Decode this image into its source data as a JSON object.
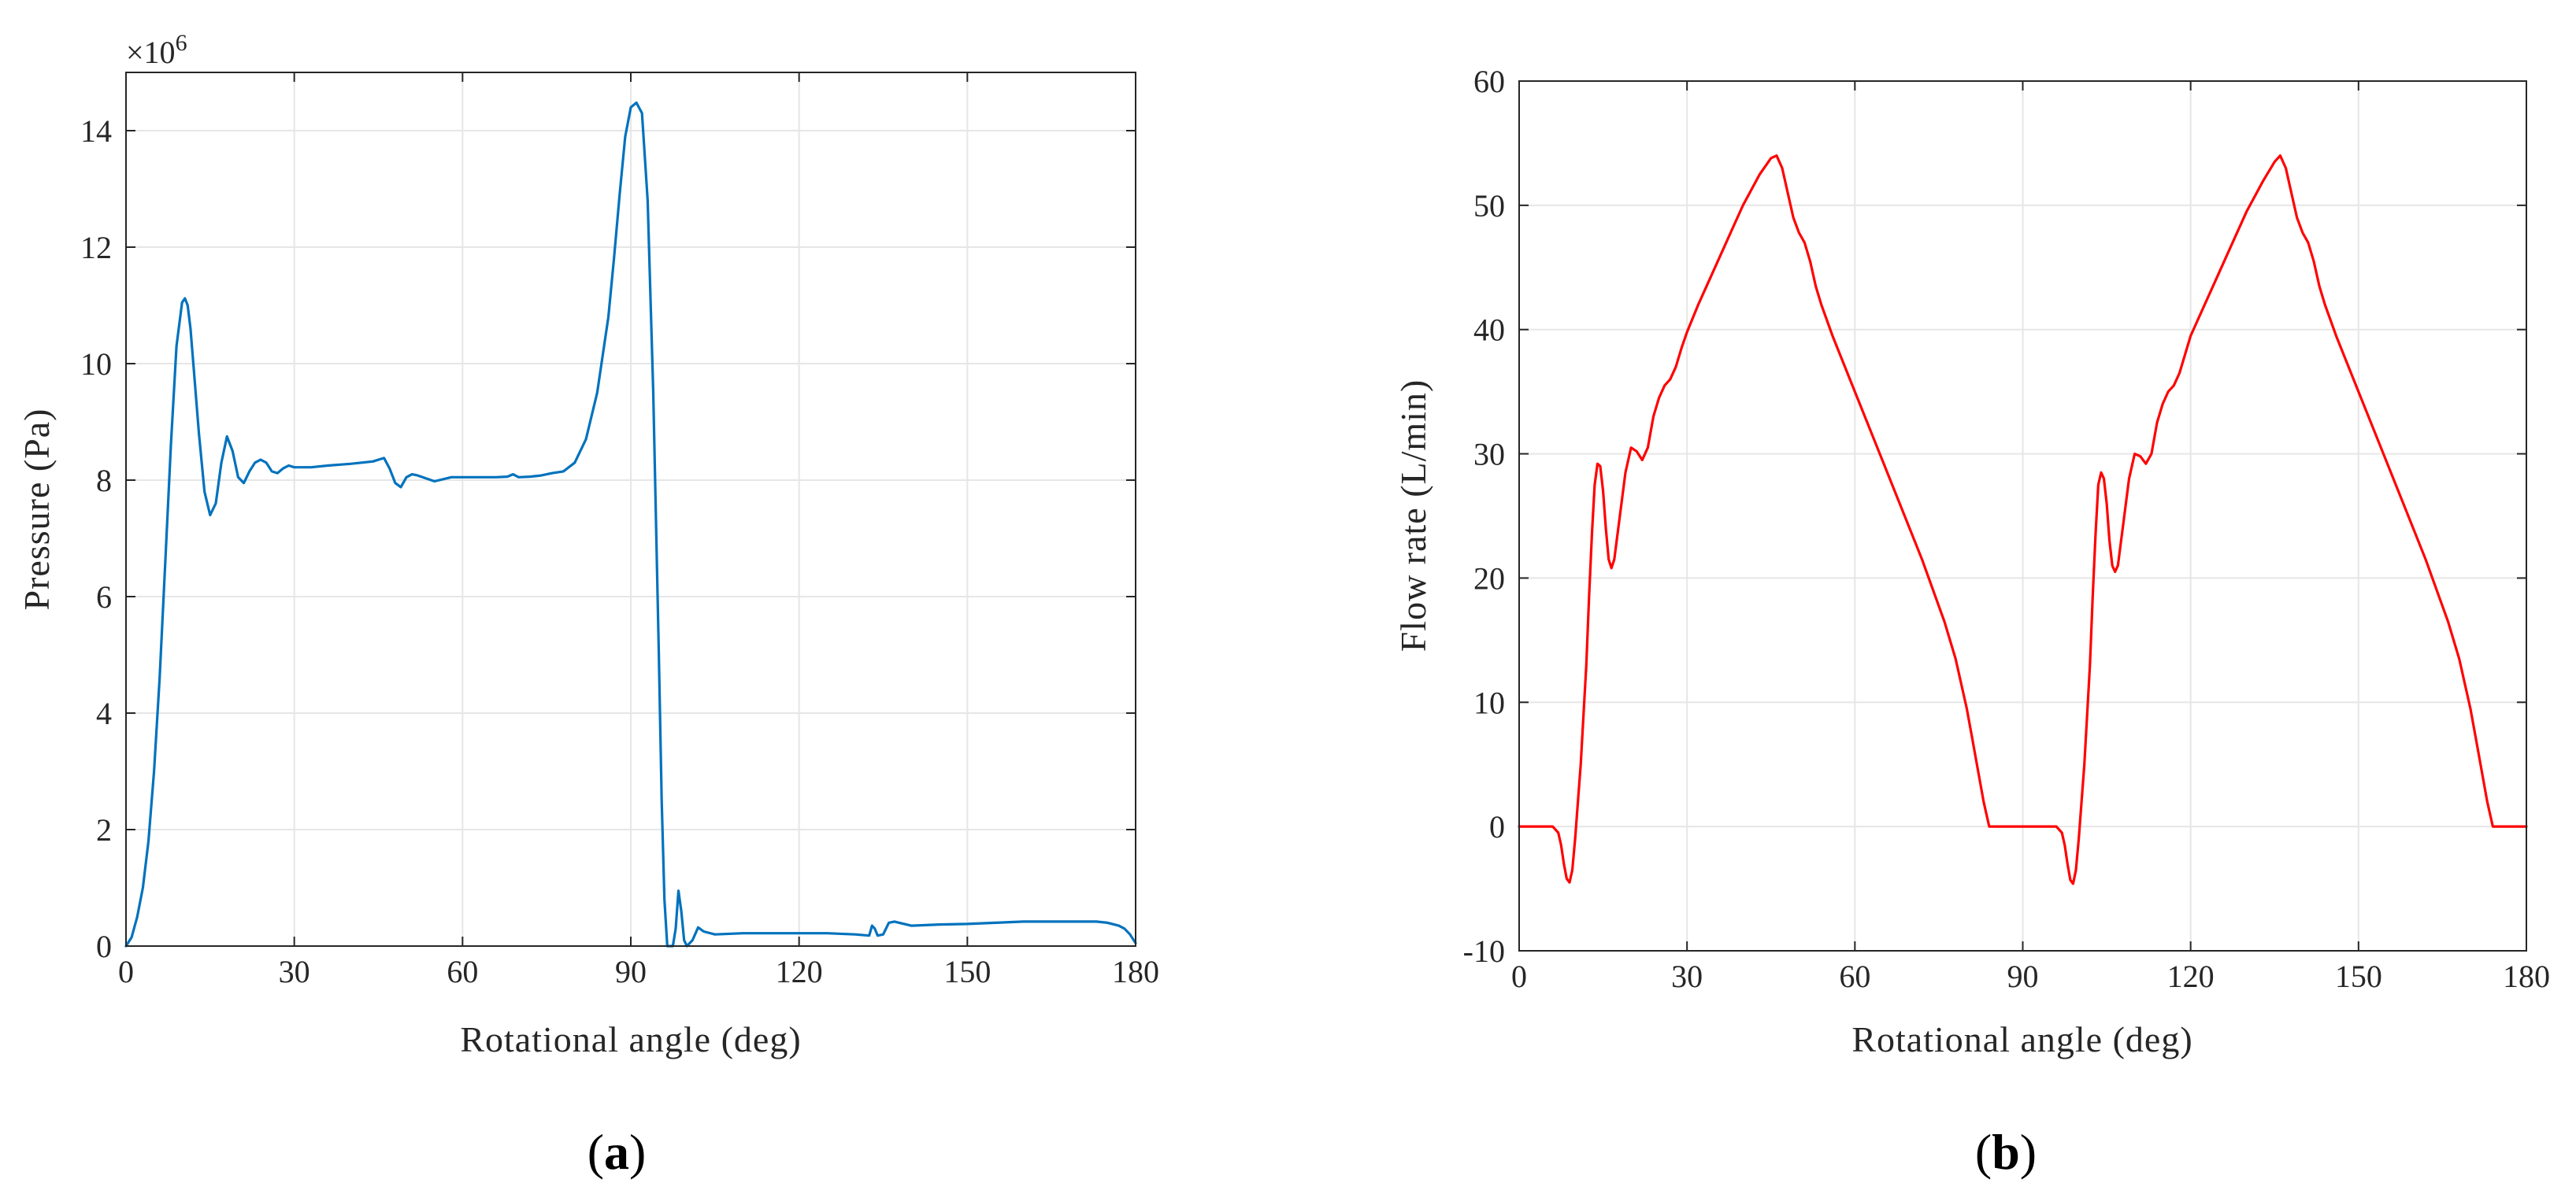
{
  "chart_data": [
    {
      "type": "line",
      "panel_label": "a",
      "xlabel": "Rotational angle (deg)",
      "ylabel": "Pressure (Pa)",
      "y_multiplier": "×10",
      "y_multiplier_exp": "6",
      "xlim": [
        0,
        180
      ],
      "ylim": [
        0,
        15
      ],
      "xticks": [
        "0",
        "30",
        "60",
        "90",
        "120",
        "150",
        "180"
      ],
      "yticks": [
        "0",
        "2",
        "4",
        "6",
        "8",
        "10",
        "12",
        "14"
      ],
      "grid": true,
      "color": "#0072BD",
      "series": [
        {
          "x": [
            0,
            1,
            2,
            3,
            4,
            5,
            6,
            7,
            8,
            9,
            10,
            10.5,
            11,
            11.5,
            12,
            13,
            14,
            15,
            16,
            17,
            18,
            19,
            20,
            21,
            22,
            23,
            24,
            25,
            26,
            27,
            28,
            29,
            30,
            33,
            36,
            40,
            44,
            46,
            47,
            48,
            49,
            50,
            51,
            52,
            55,
            58,
            62,
            66,
            68,
            69,
            70,
            72,
            74,
            76,
            78,
            80,
            82,
            84,
            86,
            87,
            88,
            89,
            90,
            91,
            92,
            93,
            94,
            95,
            95.5,
            96,
            96.5,
            97,
            97.5,
            98,
            98.5,
            99,
            99.5,
            100,
            101,
            102,
            103,
            105,
            110,
            115,
            120,
            125,
            130,
            132.5,
            133,
            133.5,
            134,
            135,
            136,
            137,
            140,
            145,
            150,
            155,
            160,
            165,
            170,
            173,
            175,
            177,
            178,
            179,
            180
          ],
          "y": [
            0,
            0.15,
            0.5,
            1.0,
            1.8,
            3.0,
            4.6,
            6.6,
            8.6,
            10.3,
            11.05,
            11.12,
            11.0,
            10.6,
            10.0,
            8.8,
            7.8,
            7.4,
            7.6,
            8.3,
            8.75,
            8.5,
            8.05,
            7.95,
            8.15,
            8.3,
            8.35,
            8.3,
            8.15,
            8.12,
            8.2,
            8.25,
            8.22,
            8.22,
            8.25,
            8.28,
            8.32,
            8.38,
            8.2,
            7.95,
            7.88,
            8.05,
            8.1,
            8.08,
            7.98,
            8.05,
            8.05,
            8.05,
            8.06,
            8.1,
            8.05,
            8.06,
            8.08,
            8.12,
            8.15,
            8.3,
            8.7,
            9.5,
            10.8,
            11.8,
            12.9,
            13.9,
            14.4,
            14.48,
            14.3,
            12.8,
            9.5,
            5.0,
            2.5,
            0.8,
            0,
            0,
            0,
            0.3,
            0.95,
            0.6,
            0.1,
            0,
            0.1,
            0.32,
            0.25,
            0.2,
            0.22,
            0.22,
            0.22,
            0.22,
            0.2,
            0.18,
            0.35,
            0.3,
            0.18,
            0.2,
            0.4,
            0.42,
            0.35,
            0.37,
            0.38,
            0.4,
            0.42,
            0.42,
            0.42,
            0.42,
            0.4,
            0.35,
            0.3,
            0.2,
            0.05
          ]
        }
      ]
    },
    {
      "type": "line",
      "panel_label": "b",
      "xlabel": "Rotational angle (deg)",
      "ylabel": "Flow rate (L/min)",
      "xlim": [
        0,
        180
      ],
      "ylim": [
        -10,
        60
      ],
      "xticks": [
        "0",
        "30",
        "60",
        "90",
        "120",
        "150",
        "180"
      ],
      "yticks": [
        "-10",
        "0",
        "10",
        "20",
        "30",
        "40",
        "50",
        "60"
      ],
      "grid": true,
      "color": "#FF0000",
      "series": [
        {
          "x": [
            0,
            3,
            6,
            7,
            7.5,
            8,
            8.5,
            9,
            9.5,
            10,
            11,
            12,
            12.5,
            13,
            13.5,
            14,
            14.5,
            15,
            15.5,
            16,
            16.5,
            17,
            18,
            19,
            20,
            21,
            22,
            23,
            24,
            25,
            26,
            27,
            28,
            29,
            30,
            32,
            35,
            38,
            40,
            43,
            45,
            46,
            47,
            48,
            49,
            50,
            51,
            52,
            53,
            54,
            56,
            60,
            64,
            68,
            72,
            76,
            78,
            80,
            81,
            82,
            83,
            84,
            86,
            90,
            94,
            96,
            97,
            97.5,
            98,
            98.5,
            99,
            99.5,
            100,
            101,
            102,
            102.5,
            103,
            103.5,
            104,
            104.5,
            105,
            105.5,
            106,
            106.5,
            107,
            108,
            109,
            110,
            111,
            112,
            113,
            114,
            115,
            116,
            117,
            118,
            119,
            120,
            122,
            125,
            128,
            130,
            133,
            135,
            136,
            137,
            138,
            139,
            140,
            141,
            142,
            143,
            144,
            146,
            150,
            154,
            158,
            162,
            166,
            168,
            170,
            171,
            172,
            173,
            174,
            176,
            180
          ],
          "y": [
            0,
            0,
            0,
            -0.5,
            -1.5,
            -3.0,
            -4.2,
            -4.5,
            -3.5,
            -1.0,
            5.0,
            13.0,
            18.5,
            23.5,
            27.5,
            29.2,
            29.0,
            27.0,
            24.0,
            21.5,
            20.8,
            21.5,
            25.0,
            28.5,
            30.5,
            30.2,
            29.5,
            30.5,
            33.0,
            34.5,
            35.5,
            36.0,
            37.0,
            38.5,
            39.8,
            42.0,
            45.0,
            48.0,
            50.0,
            52.5,
            53.8,
            54.0,
            53.0,
            51.0,
            49.0,
            47.8,
            47.0,
            45.5,
            43.5,
            42.0,
            39.5,
            35.0,
            30.5,
            26.0,
            21.5,
            16.5,
            13.5,
            9.5,
            7.0,
            4.5,
            2.0,
            0,
            0,
            0,
            0,
            0,
            -0.5,
            -1.5,
            -3.0,
            -4.3,
            -4.6,
            -3.5,
            -1.0,
            5.0,
            13.0,
            18.5,
            23.5,
            27.5,
            28.5,
            28.0,
            26.0,
            23.0,
            21.0,
            20.5,
            21.0,
            24.5,
            28.0,
            30.0,
            29.8,
            29.2,
            30.0,
            32.5,
            34.0,
            35.0,
            35.5,
            36.5,
            38.0,
            39.5,
            41.5,
            44.5,
            47.5,
            49.5,
            52.0,
            53.5,
            54.0,
            53.0,
            51.0,
            49.0,
            47.8,
            47.0,
            45.5,
            43.5,
            42.0,
            39.5,
            35.0,
            30.5,
            26.0,
            21.5,
            16.5,
            13.5,
            9.5,
            7.0,
            4.5,
            2.0,
            0,
            0,
            0
          ]
        }
      ]
    }
  ]
}
